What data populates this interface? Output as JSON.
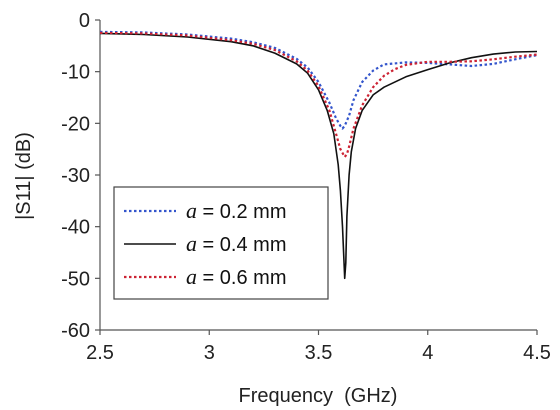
{
  "chart_data": {
    "type": "line",
    "xlabel": "Frequency  (GHz)",
    "ylabel": "|S11| (dB)",
    "xlim": [
      2.5,
      4.5
    ],
    "ylim": [
      -60,
      0
    ],
    "xticks": [
      "2.5",
      "3",
      "3.5",
      "4",
      "4.5"
    ],
    "yticks": [
      "0",
      "-10",
      "-20",
      "-30",
      "-40",
      "-50",
      "-60"
    ],
    "grid": false,
    "legend_position": "lower-left",
    "series": [
      {
        "name": "a = 0.2 mm",
        "symbol": "a",
        "suffix": " = 0.2 mm",
        "color": "#3355cc",
        "style": "dotted",
        "x": [
          2.5,
          2.7,
          2.9,
          3.1,
          3.2,
          3.3,
          3.4,
          3.45,
          3.5,
          3.55,
          3.58,
          3.6,
          3.61,
          3.62,
          3.64,
          3.66,
          3.7,
          3.75,
          3.8,
          3.9,
          4.0,
          4.1,
          4.2,
          4.3,
          4.4,
          4.5
        ],
        "y": [
          -2.3,
          -2.4,
          -2.8,
          -3.6,
          -4.3,
          -5.4,
          -7.5,
          -9.2,
          -12,
          -16,
          -19,
          -20.5,
          -21,
          -20.5,
          -18.5,
          -15.5,
          -12,
          -9.8,
          -8.6,
          -8.2,
          -8.3,
          -8.6,
          -8.9,
          -8.5,
          -7.6,
          -6.8
        ]
      },
      {
        "name": "a = 0.4 mm",
        "symbol": "a",
        "suffix": " = 0.4 mm",
        "color": "#111111",
        "style": "solid",
        "x": [
          2.5,
          2.7,
          2.9,
          3.1,
          3.2,
          3.3,
          3.4,
          3.45,
          3.5,
          3.54,
          3.57,
          3.59,
          3.6,
          3.61,
          3.62,
          3.625,
          3.63,
          3.64,
          3.65,
          3.67,
          3.7,
          3.75,
          3.8,
          3.9,
          4.0,
          4.1,
          4.2,
          4.3,
          4.4,
          4.5
        ],
        "y": [
          -2.6,
          -2.8,
          -3.3,
          -4.2,
          -5.0,
          -6.4,
          -8.5,
          -10.3,
          -13.5,
          -17.5,
          -22,
          -28,
          -33,
          -40,
          -50,
          -47,
          -38,
          -30,
          -25.5,
          -21,
          -17.5,
          -14.5,
          -13,
          -11,
          -9.6,
          -8.3,
          -7.3,
          -6.6,
          -6.2,
          -6.1
        ]
      },
      {
        "name": "a = 0.6 mm",
        "symbol": "a",
        "suffix": " = 0.6 mm",
        "color": "#cc2233",
        "style": "dotted",
        "x": [
          2.5,
          2.7,
          2.9,
          3.1,
          3.2,
          3.3,
          3.4,
          3.45,
          3.5,
          3.55,
          3.58,
          3.6,
          3.62,
          3.63,
          3.64,
          3.66,
          3.7,
          3.75,
          3.8,
          3.85,
          3.9,
          4.0,
          4.1,
          4.2,
          4.3,
          4.4,
          4.5
        ],
        "y": [
          -2.5,
          -2.6,
          -3.0,
          -3.9,
          -4.6,
          -5.8,
          -8.0,
          -9.8,
          -12.8,
          -17.5,
          -22,
          -25,
          -26.5,
          -26,
          -24.5,
          -21,
          -16.5,
          -13,
          -10.8,
          -9.5,
          -8.7,
          -8.1,
          -8.1,
          -8.0,
          -7.6,
          -7.1,
          -6.7
        ]
      }
    ]
  }
}
